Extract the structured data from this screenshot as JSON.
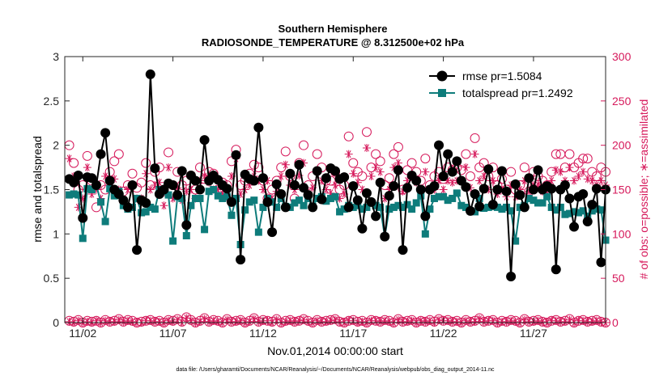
{
  "chart_data": {
    "type": "line",
    "title_line1": "Southern Hemisphere",
    "title_line2": "RADIOSONDE_TEMPERATURE @ 8.312500e+02 hPa",
    "xlabel": "Nov.01,2014 00:00:00 start",
    "ylabel_left": "rmse and totalspread",
    "ylabel_right": "# of obs: o=possible; ∗=assimilated",
    "footnote": "data file: /Users/gharamti/Documents/NCAR/Reanalysis/~/Documents/NCAR/Reanalysis/webpub/obs_diag_output_2014-11.nc",
    "x_tick_labels": [
      "11/02",
      "11/07",
      "11/12",
      "11/17",
      "11/22",
      "11/27"
    ],
    "x_tick_days": [
      2,
      7,
      12,
      17,
      22,
      27
    ],
    "xlim": [
      1.0,
      31.0
    ],
    "ylim_left": [
      0,
      3
    ],
    "ylim_right": [
      0,
      300
    ],
    "y_left_ticks": [
      "0",
      "0.5",
      "1",
      "1.5",
      "2",
      "2.5",
      "3"
    ],
    "y_right_ticks": [
      "0",
      "50",
      "100",
      "150",
      "200",
      "250",
      "300"
    ],
    "colors": {
      "rmse": "#000000",
      "spread": "#0e7c7b",
      "obs": "#d6195b",
      "axis": "#262626"
    },
    "legend": [
      {
        "name": "rmse",
        "label": "rmse pr=1.5084"
      },
      {
        "name": "totalspread",
        "label": "totalspread pr=1.2492"
      }
    ],
    "x_days": [
      1.25,
      1.5,
      1.75,
      2.0,
      2.25,
      2.5,
      2.75,
      3.0,
      3.25,
      3.5,
      3.75,
      4.0,
      4.25,
      4.5,
      4.75,
      5.0,
      5.25,
      5.5,
      5.75,
      6.0,
      6.25,
      6.5,
      6.75,
      7.0,
      7.25,
      7.5,
      7.75,
      8.0,
      8.25,
      8.5,
      8.75,
      9.0,
      9.25,
      9.5,
      9.75,
      10.0,
      10.25,
      10.5,
      10.75,
      11.0,
      11.25,
      11.5,
      11.75,
      12.0,
      12.25,
      12.5,
      12.75,
      13.0,
      13.25,
      13.5,
      13.75,
      14.0,
      14.25,
      14.5,
      14.75,
      15.0,
      15.25,
      15.5,
      15.75,
      16.0,
      16.25,
      16.5,
      16.75,
      17.0,
      17.25,
      17.5,
      17.75,
      18.0,
      18.25,
      18.5,
      18.75,
      19.0,
      19.25,
      19.5,
      19.75,
      20.0,
      20.25,
      20.5,
      20.75,
      21.0,
      21.25,
      21.5,
      21.75,
      22.0,
      22.25,
      22.5,
      22.75,
      23.0,
      23.25,
      23.5,
      23.75,
      24.0,
      24.25,
      24.5,
      24.75,
      25.0,
      25.25,
      25.5,
      25.75,
      26.0,
      26.25,
      26.5,
      26.75,
      27.0,
      27.25,
      27.5,
      27.75,
      28.0,
      28.25,
      28.5,
      28.75,
      29.0,
      29.25,
      29.5,
      29.75,
      30.0,
      30.25,
      30.5,
      30.75,
      31.0
    ],
    "series": [
      {
        "name": "rmse",
        "values": [
          1.62,
          1.58,
          1.66,
          1.18,
          1.64,
          1.63,
          1.55,
          1.9,
          2.14,
          1.6,
          1.5,
          1.45,
          1.38,
          1.3,
          1.55,
          0.82,
          1.38,
          1.35,
          2.8,
          1.74,
          1.45,
          1.5,
          1.57,
          1.55,
          1.44,
          1.71,
          1.1,
          1.66,
          1.6,
          1.5,
          2.06,
          1.6,
          1.66,
          1.61,
          1.55,
          1.51,
          1.36,
          1.89,
          0.71,
          1.67,
          1.62,
          1.6,
          2.2,
          1.63,
          1.36,
          1.02,
          1.56,
          1.45,
          1.3,
          1.68,
          1.55,
          1.78,
          1.52,
          1.44,
          1.3,
          1.71,
          1.39,
          1.63,
          1.74,
          1.71,
          1.62,
          1.64,
          1.3,
          1.54,
          1.38,
          1.06,
          1.46,
          1.36,
          1.2,
          1.58,
          0.97,
          1.43,
          1.54,
          1.72,
          0.82,
          1.52,
          1.66,
          1.6,
          1.5,
          1.2,
          1.5,
          1.54,
          2.0,
          1.65,
          1.9,
          1.7,
          1.82,
          1.6,
          1.53,
          1.26,
          1.45,
          1.31,
          1.51,
          1.73,
          1.33,
          1.5,
          1.71,
          1.48,
          0.52,
          1.56,
          1.44,
          1.3,
          1.63,
          1.5,
          1.72,
          1.5,
          1.54,
          1.51,
          0.6,
          1.5,
          1.55,
          1.4,
          1.08,
          1.42,
          1.45,
          1.14,
          1.33,
          1.51,
          0.68,
          1.5
        ]
      },
      {
        "name": "totalspread",
        "values": [
          1.44,
          1.45,
          1.44,
          0.95,
          1.51,
          1.5,
          1.55,
          1.36,
          1.14,
          1.51,
          1.43,
          1.48,
          1.32,
          1.28,
          1.3,
          1.4,
          1.24,
          1.25,
          1.3,
          1.28,
          1.5,
          1.48,
          1.44,
          0.92,
          1.42,
          1.4,
          0.98,
          1.32,
          1.4,
          1.4,
          1.05,
          1.48,
          1.5,
          1.43,
          1.4,
          1.42,
          1.21,
          1.4,
          0.88,
          1.27,
          1.36,
          1.38,
          1.02,
          1.3,
          1.4,
          1.36,
          1.3,
          1.4,
          1.31,
          1.3,
          1.35,
          1.38,
          1.32,
          1.4,
          1.31,
          1.4,
          1.42,
          1.37,
          1.4,
          1.42,
          1.25,
          1.28,
          1.32,
          1.3,
          1.32,
          1.28,
          1.3,
          1.35,
          1.32,
          1.3,
          0.97,
          1.28,
          1.3,
          1.32,
          1.3,
          1.33,
          1.28,
          1.35,
          1.43,
          1.0,
          1.28,
          1.4,
          1.42,
          1.42,
          1.38,
          1.4,
          1.46,
          1.32,
          1.3,
          1.26,
          1.25,
          1.4,
          1.29,
          1.3,
          1.31,
          1.3,
          1.28,
          1.3,
          1.26,
          0.92,
          1.3,
          1.32,
          1.4,
          1.38,
          1.35,
          1.35,
          1.42,
          1.3,
          1.27,
          1.3,
          1.22,
          1.23,
          1.25,
          1.24,
          1.26,
          1.2,
          1.26,
          1.28,
          1.27,
          0.93
        ]
      }
    ],
    "obs_series": [
      {
        "name": "possible",
        "marker": "circle",
        "values": [
          2,
          1,
          3,
          0,
          2,
          1,
          2,
          0,
          3,
          1,
          2,
          4,
          1,
          3,
          2,
          0,
          1,
          2,
          3,
          1,
          2,
          0,
          3,
          2,
          4,
          1,
          6,
          3,
          0,
          2,
          5,
          1,
          3,
          2,
          0,
          4,
          1,
          2,
          3,
          0,
          2,
          5,
          1,
          3,
          2,
          1,
          4,
          0,
          2,
          3,
          1,
          2,
          4,
          2,
          0,
          3,
          1,
          2,
          3,
          4,
          1,
          0,
          2,
          3,
          1,
          2,
          0,
          3,
          2,
          1,
          3,
          2,
          0,
          4,
          1,
          2,
          3,
          0,
          2,
          1,
          3,
          1,
          4,
          2,
          3,
          1,
          2,
          0,
          3,
          1,
          2,
          5,
          1,
          2,
          3,
          0,
          2,
          1,
          3,
          2,
          0,
          4,
          1,
          2,
          3,
          1,
          0,
          2,
          3,
          1,
          2,
          4,
          0,
          2,
          3,
          1,
          2,
          3,
          1,
          0
        ]
      },
      {
        "name": "assimilated",
        "marker": "star",
        "values": [
          1,
          0,
          2,
          0,
          1,
          0,
          2,
          0,
          2,
          1,
          1,
          3,
          1,
          2,
          1,
          0,
          0,
          2,
          2,
          1,
          1,
          0,
          2,
          1,
          3,
          0,
          5,
          2,
          0,
          1,
          4,
          1,
          2,
          1,
          0,
          3,
          1,
          1,
          2,
          0,
          1,
          4,
          1,
          2,
          2,
          0,
          3,
          0,
          1,
          2,
          1,
          2,
          3,
          1,
          0,
          2,
          1,
          1,
          2,
          3,
          1,
          0,
          2,
          2,
          0,
          1,
          0,
          2,
          2,
          1,
          2,
          1,
          0,
          3,
          1,
          1,
          2,
          0,
          2,
          1,
          2,
          0,
          3,
          2,
          2,
          1,
          1,
          0,
          2,
          1,
          1,
          4,
          1,
          2,
          2,
          0,
          1,
          1,
          2,
          1,
          0,
          3,
          1,
          1,
          2,
          1,
          0,
          2,
          2,
          1,
          1,
          3,
          0,
          2,
          2,
          1,
          1,
          2,
          1,
          0
        ]
      },
      {
        "name": "possible_upper",
        "marker": "circle",
        "values": [
          200,
          180,
          150,
          155,
          188,
          160,
          130,
          155,
          150,
          170,
          182,
          190,
          148,
          155,
          168,
          152,
          158,
          180,
          155,
          170,
          175,
          148,
          192,
          155,
          170,
          155,
          160,
          166,
          150,
          175,
          162,
          170,
          168,
          150,
          158,
          155,
          182,
          195,
          155,
          160,
          168,
          178,
          175,
          160,
          140,
          150,
          160,
          175,
          193,
          165,
          140,
          180,
          200,
          155,
          165,
          190,
          175,
          160,
          160,
          170,
          150,
          155,
          210,
          180,
          170,
          165,
          215,
          175,
          190,
          182,
          155,
          163,
          190,
          198,
          150,
          172,
          180,
          170,
          160,
          185,
          155,
          165,
          170,
          162,
          175,
          172,
          175,
          172,
          190,
          165,
          208,
          175,
          180,
          165,
          175,
          155,
          162,
          150,
          170,
          150,
          155,
          175,
          148,
          170,
          165,
          160,
          155,
          170,
          190,
          190,
          175,
          190,
          175,
          180,
          185,
          185,
          170,
          165,
          175,
          170
        ]
      },
      {
        "name": "assimilated_upper",
        "marker": "star",
        "values": [
          185,
          165,
          130,
          140,
          175,
          145,
          150,
          140,
          165,
          155,
          162,
          150,
          135,
          150,
          155,
          140,
          140,
          168,
          150,
          155,
          158,
          132,
          175,
          140,
          152,
          138,
          148,
          150,
          140,
          160,
          165,
          158,
          150,
          150,
          145,
          140,
          165,
          185,
          145,
          150,
          155,
          165,
          160,
          150,
          160,
          140,
          148,
          165,
          178,
          155,
          150,
          166,
          180,
          145,
          152,
          172,
          160,
          150,
          146,
          155,
          140,
          145,
          190,
          168,
          158,
          150,
          197,
          165,
          175,
          170,
          140,
          150,
          175,
          180,
          148,
          160,
          165,
          158,
          148,
          170,
          150,
          150,
          160,
          150,
          160,
          158,
          160,
          160,
          175,
          152,
          190,
          160,
          165,
          150,
          160,
          145,
          150,
          142,
          155,
          142,
          150,
          160,
          148,
          155,
          155,
          148,
          145,
          160,
          172,
          170,
          160,
          175,
          160,
          165,
          170,
          162,
          160,
          155,
          160,
          155
        ]
      }
    ]
  }
}
